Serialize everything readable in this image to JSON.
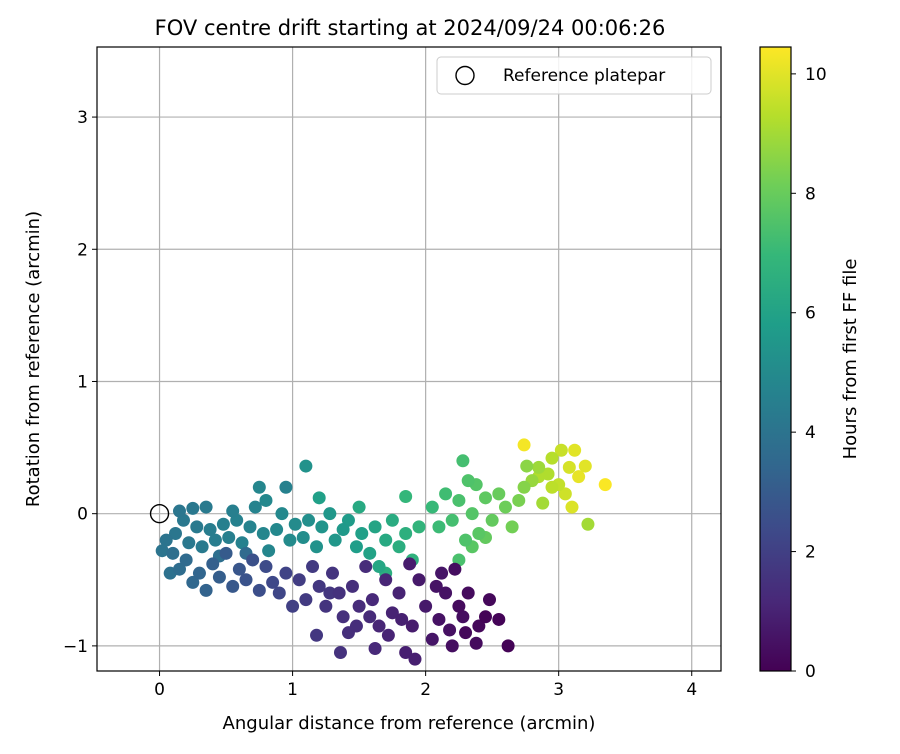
{
  "chart_data": {
    "type": "scatter",
    "title": "FOV centre drift starting at 2024/09/24 00:06:26",
    "xlabel": "Angular distance from reference (arcmin)",
    "ylabel": "Rotation from reference (arcmin)",
    "xlim": [
      -0.47,
      4.22
    ],
    "ylim": [
      -1.19,
      3.53
    ],
    "xticks": [
      0,
      1,
      2,
      3,
      4
    ],
    "yticks": [
      -1,
      0,
      1,
      2,
      3
    ],
    "xtick_labels": [
      "0",
      "1",
      "2",
      "3",
      "4"
    ],
    "ytick_labels": [
      "−1",
      "0",
      "1",
      "2",
      "3"
    ],
    "grid": true,
    "legend": {
      "position": "top-right",
      "entries": [
        {
          "label": "Reference platepar",
          "marker": "open-circle",
          "color": "#000000"
        }
      ]
    },
    "reference_point": {
      "x": 0,
      "y": 0
    },
    "colorbar": {
      "label": "Hours from first FF file",
      "range": [
        0,
        10.45
      ],
      "ticks": [
        0,
        2,
        4,
        6,
        8,
        10
      ],
      "tick_labels": [
        "0",
        "2",
        "4",
        "6",
        "8",
        "10"
      ],
      "colormap": "viridis",
      "stops": [
        "#440154",
        "#482878",
        "#3e4989",
        "#31688e",
        "#26828e",
        "#1f9e89",
        "#35b779",
        "#6ece58",
        "#b5de2b",
        "#fde725"
      ]
    },
    "points": [
      {
        "x": 2.62,
        "y": -1.0,
        "h": 0.05
      },
      {
        "x": 2.55,
        "y": -0.8,
        "h": 0.1
      },
      {
        "x": 2.45,
        "y": -0.78,
        "h": 0.1
      },
      {
        "x": 2.4,
        "y": -0.85,
        "h": 0.2
      },
      {
        "x": 2.3,
        "y": -0.9,
        "h": 0.2
      },
      {
        "x": 2.38,
        "y": -0.98,
        "h": 0.3
      },
      {
        "x": 2.25,
        "y": -0.7,
        "h": 0.3
      },
      {
        "x": 2.2,
        "y": -1.0,
        "h": 0.4
      },
      {
        "x": 2.22,
        "y": -0.42,
        "h": 0.4
      },
      {
        "x": 2.15,
        "y": -0.6,
        "h": 0.5
      },
      {
        "x": 2.1,
        "y": -0.8,
        "h": 0.5
      },
      {
        "x": 2.05,
        "y": -0.95,
        "h": 0.6
      },
      {
        "x": 2.12,
        "y": -0.45,
        "h": 0.6
      },
      {
        "x": 2.0,
        "y": -0.7,
        "h": 0.7
      },
      {
        "x": 1.95,
        "y": -0.5,
        "h": 0.7
      },
      {
        "x": 1.9,
        "y": -0.85,
        "h": 0.8
      },
      {
        "x": 1.88,
        "y": -0.38,
        "h": 0.8
      },
      {
        "x": 1.85,
        "y": -1.05,
        "h": 0.9
      },
      {
        "x": 1.92,
        "y": -1.1,
        "h": 0.9
      },
      {
        "x": 2.32,
        "y": -0.6,
        "h": 0.3
      },
      {
        "x": 2.48,
        "y": -0.65,
        "h": 0.2
      },
      {
        "x": 2.28,
        "y": -0.78,
        "h": 0.35
      },
      {
        "x": 2.18,
        "y": -0.88,
        "h": 0.45
      },
      {
        "x": 2.08,
        "y": -0.55,
        "h": 0.55
      },
      {
        "x": 1.8,
        "y": -0.6,
        "h": 1.0
      },
      {
        "x": 1.75,
        "y": -0.75,
        "h": 1.0
      },
      {
        "x": 1.7,
        "y": -0.5,
        "h": 1.1
      },
      {
        "x": 1.65,
        "y": -0.85,
        "h": 1.1
      },
      {
        "x": 1.62,
        "y": -1.02,
        "h": 1.2
      },
      {
        "x": 1.6,
        "y": -0.65,
        "h": 1.2
      },
      {
        "x": 1.55,
        "y": -0.4,
        "h": 1.3
      },
      {
        "x": 1.5,
        "y": -0.7,
        "h": 1.3
      },
      {
        "x": 1.45,
        "y": -0.55,
        "h": 1.4
      },
      {
        "x": 1.42,
        "y": -0.9,
        "h": 1.4
      },
      {
        "x": 1.36,
        "y": -1.05,
        "h": 1.5
      },
      {
        "x": 1.35,
        "y": -0.6,
        "h": 1.5
      },
      {
        "x": 1.3,
        "y": -0.45,
        "h": 1.6
      },
      {
        "x": 1.25,
        "y": -0.7,
        "h": 1.6
      },
      {
        "x": 1.18,
        "y": -0.92,
        "h": 1.7
      },
      {
        "x": 1.2,
        "y": -0.55,
        "h": 1.7
      },
      {
        "x": 1.15,
        "y": -0.4,
        "h": 1.8
      },
      {
        "x": 1.1,
        "y": -0.65,
        "h": 1.8
      },
      {
        "x": 1.72,
        "y": -0.92,
        "h": 1.05
      },
      {
        "x": 1.82,
        "y": -0.8,
        "h": 0.95
      },
      {
        "x": 1.58,
        "y": -0.78,
        "h": 1.25
      },
      {
        "x": 1.48,
        "y": -0.85,
        "h": 1.35
      },
      {
        "x": 1.38,
        "y": -0.78,
        "h": 1.45
      },
      {
        "x": 1.28,
        "y": -0.6,
        "h": 1.65
      },
      {
        "x": 1.05,
        "y": -0.5,
        "h": 1.9
      },
      {
        "x": 1.0,
        "y": -0.7,
        "h": 2.0
      },
      {
        "x": 0.95,
        "y": -0.45,
        "h": 2.1
      },
      {
        "x": 0.9,
        "y": -0.6,
        "h": 2.2
      },
      {
        "x": 0.85,
        "y": -0.52,
        "h": 2.3
      },
      {
        "x": 0.8,
        "y": -0.4,
        "h": 2.4
      },
      {
        "x": 0.75,
        "y": -0.58,
        "h": 2.5
      },
      {
        "x": 0.7,
        "y": -0.35,
        "h": 2.6
      },
      {
        "x": 0.65,
        "y": -0.5,
        "h": 2.7
      },
      {
        "x": 0.6,
        "y": -0.42,
        "h": 2.8
      },
      {
        "x": 0.55,
        "y": -0.55,
        "h": 2.9
      },
      {
        "x": 0.5,
        "y": -0.3,
        "h": 3.0
      },
      {
        "x": 0.45,
        "y": -0.48,
        "h": 3.1
      },
      {
        "x": 0.4,
        "y": -0.38,
        "h": 3.2
      },
      {
        "x": 0.35,
        "y": -0.58,
        "h": 3.3
      },
      {
        "x": 0.3,
        "y": -0.45,
        "h": 3.4
      },
      {
        "x": 0.25,
        "y": -0.52,
        "h": 3.5
      },
      {
        "x": 0.2,
        "y": -0.35,
        "h": 3.6
      },
      {
        "x": 0.15,
        "y": -0.42,
        "h": 3.7
      },
      {
        "x": 0.1,
        "y": -0.3,
        "h": 3.8
      },
      {
        "x": 0.08,
        "y": -0.45,
        "h": 3.9
      },
      {
        "x": 0.05,
        "y": -0.2,
        "h": 4.0
      },
      {
        "x": 0.02,
        "y": -0.28,
        "h": 4.0
      },
      {
        "x": 0.12,
        "y": -0.15,
        "h": 4.1
      },
      {
        "x": 0.18,
        "y": -0.05,
        "h": 4.2
      },
      {
        "x": 0.22,
        "y": -0.22,
        "h": 4.2
      },
      {
        "x": 0.28,
        "y": -0.1,
        "h": 4.3
      },
      {
        "x": 0.32,
        "y": -0.25,
        "h": 4.3
      },
      {
        "x": 0.38,
        "y": -0.12,
        "h": 4.4
      },
      {
        "x": 0.42,
        "y": -0.2,
        "h": 4.4
      },
      {
        "x": 0.48,
        "y": -0.08,
        "h": 4.5
      },
      {
        "x": 0.52,
        "y": -0.18,
        "h": 4.5
      },
      {
        "x": 0.58,
        "y": -0.05,
        "h": 4.6
      },
      {
        "x": 0.62,
        "y": -0.22,
        "h": 4.6
      },
      {
        "x": 0.68,
        "y": -0.1,
        "h": 4.7
      },
      {
        "x": 0.72,
        "y": 0.05,
        "h": 4.7
      },
      {
        "x": 0.78,
        "y": -0.15,
        "h": 4.8
      },
      {
        "x": 0.82,
        "y": -0.28,
        "h": 4.8
      },
      {
        "x": 0.88,
        "y": -0.12,
        "h": 4.9
      },
      {
        "x": 0.92,
        "y": 0.0,
        "h": 4.9
      },
      {
        "x": 0.98,
        "y": -0.2,
        "h": 5.0
      },
      {
        "x": 1.02,
        "y": -0.08,
        "h": 5.0
      },
      {
        "x": 0.15,
        "y": 0.02,
        "h": 4.1
      },
      {
        "x": 0.25,
        "y": 0.04,
        "h": 4.2
      },
      {
        "x": 0.35,
        "y": 0.05,
        "h": 4.3
      },
      {
        "x": 0.55,
        "y": 0.02,
        "h": 4.5
      },
      {
        "x": 0.45,
        "y": -0.32,
        "h": 3.8
      },
      {
        "x": 0.65,
        "y": -0.3,
        "h": 3.6
      },
      {
        "x": 0.75,
        "y": 0.2,
        "h": 4.8
      },
      {
        "x": 0.8,
        "y": 0.1,
        "h": 4.9
      },
      {
        "x": 0.95,
        "y": 0.2,
        "h": 4.6
      },
      {
        "x": 1.08,
        "y": -0.18,
        "h": 5.1
      },
      {
        "x": 1.12,
        "y": -0.05,
        "h": 5.2
      },
      {
        "x": 1.1,
        "y": 0.36,
        "h": 5.3
      },
      {
        "x": 1.18,
        "y": -0.25,
        "h": 5.3
      },
      {
        "x": 1.22,
        "y": -0.1,
        "h": 5.4
      },
      {
        "x": 1.28,
        "y": 0.0,
        "h": 5.5
      },
      {
        "x": 1.32,
        "y": -0.2,
        "h": 5.5
      },
      {
        "x": 1.38,
        "y": -0.12,
        "h": 5.6
      },
      {
        "x": 1.42,
        "y": -0.05,
        "h": 5.7
      },
      {
        "x": 1.48,
        "y": -0.25,
        "h": 5.8
      },
      {
        "x": 1.52,
        "y": -0.15,
        "h": 5.9
      },
      {
        "x": 1.58,
        "y": -0.3,
        "h": 6.0
      },
      {
        "x": 1.62,
        "y": -0.1,
        "h": 6.1
      },
      {
        "x": 1.65,
        "y": -0.4,
        "h": 6.2
      },
      {
        "x": 1.7,
        "y": -0.2,
        "h": 6.3
      },
      {
        "x": 1.75,
        "y": -0.05,
        "h": 6.4
      },
      {
        "x": 1.8,
        "y": -0.25,
        "h": 6.5
      },
      {
        "x": 1.85,
        "y": -0.15,
        "h": 6.6
      },
      {
        "x": 1.9,
        "y": -0.35,
        "h": 6.7
      },
      {
        "x": 1.95,
        "y": -0.1,
        "h": 6.8
      },
      {
        "x": 1.2,
        "y": 0.12,
        "h": 5.9
      },
      {
        "x": 1.5,
        "y": 0.05,
        "h": 6.3
      },
      {
        "x": 1.85,
        "y": 0.13,
        "h": 6.9
      },
      {
        "x": 1.7,
        "y": -0.45,
        "h": 6.5
      },
      {
        "x": 2.05,
        "y": 0.05,
        "h": 7.0
      },
      {
        "x": 2.1,
        "y": -0.1,
        "h": 7.1
      },
      {
        "x": 2.15,
        "y": 0.15,
        "h": 7.2
      },
      {
        "x": 2.2,
        "y": -0.05,
        "h": 7.3
      },
      {
        "x": 2.25,
        "y": 0.1,
        "h": 7.4
      },
      {
        "x": 2.3,
        "y": -0.2,
        "h": 7.5
      },
      {
        "x": 2.35,
        "y": 0.0,
        "h": 7.6
      },
      {
        "x": 2.4,
        "y": -0.15,
        "h": 7.7
      },
      {
        "x": 2.45,
        "y": 0.12,
        "h": 7.8
      },
      {
        "x": 2.5,
        "y": -0.05,
        "h": 7.9
      },
      {
        "x": 2.55,
        "y": 0.15,
        "h": 8.0
      },
      {
        "x": 2.6,
        "y": 0.05,
        "h": 8.1
      },
      {
        "x": 2.28,
        "y": 0.4,
        "h": 7.3
      },
      {
        "x": 2.32,
        "y": 0.25,
        "h": 7.5
      },
      {
        "x": 2.38,
        "y": 0.22,
        "h": 7.6
      },
      {
        "x": 2.25,
        "y": -0.35,
        "h": 7.4
      },
      {
        "x": 2.35,
        "y": -0.25,
        "h": 7.7
      },
      {
        "x": 2.45,
        "y": -0.18,
        "h": 7.9
      },
      {
        "x": 2.65,
        "y": -0.1,
        "h": 8.2
      },
      {
        "x": 2.7,
        "y": 0.1,
        "h": 8.3
      },
      {
        "x": 2.74,
        "y": 0.2,
        "h": 8.5
      },
      {
        "x": 2.76,
        "y": 0.36,
        "h": 8.6
      },
      {
        "x": 2.8,
        "y": 0.25,
        "h": 8.8
      },
      {
        "x": 2.85,
        "y": 0.35,
        "h": 8.9
      },
      {
        "x": 2.88,
        "y": 0.08,
        "h": 9.0
      },
      {
        "x": 2.92,
        "y": 0.3,
        "h": 9.2
      },
      {
        "x": 2.95,
        "y": 0.42,
        "h": 9.3
      },
      {
        "x": 3.0,
        "y": 0.22,
        "h": 9.5
      },
      {
        "x": 3.02,
        "y": 0.48,
        "h": 9.6
      },
      {
        "x": 3.05,
        "y": 0.15,
        "h": 9.7
      },
      {
        "x": 3.08,
        "y": 0.35,
        "h": 9.8
      },
      {
        "x": 3.1,
        "y": 0.05,
        "h": 9.9
      },
      {
        "x": 3.12,
        "y": 0.48,
        "h": 10.0
      },
      {
        "x": 3.15,
        "y": 0.28,
        "h": 10.1
      },
      {
        "x": 3.2,
        "y": 0.36,
        "h": 10.0
      },
      {
        "x": 3.22,
        "y": -0.08,
        "h": 9.0
      },
      {
        "x": 3.35,
        "y": 0.22,
        "h": 10.4
      },
      {
        "x": 2.74,
        "y": 0.52,
        "h": 10.3
      },
      {
        "x": 2.85,
        "y": 0.28,
        "h": 9.2
      },
      {
        "x": 2.95,
        "y": 0.2,
        "h": 9.4
      }
    ]
  }
}
